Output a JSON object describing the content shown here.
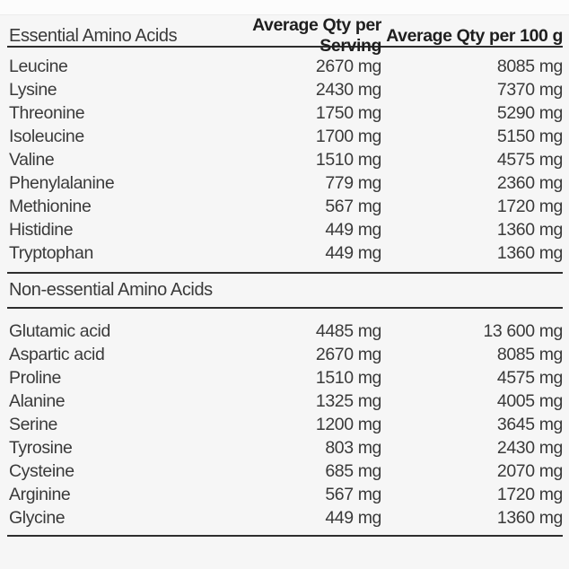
{
  "colors": {
    "background": "#f6f6f6",
    "rule": "#2e2e2e",
    "text": "#3a3a3a",
    "header_bold_text": "#1f1f1f"
  },
  "table_header": {
    "label": "Essential Amino Acids",
    "col_serving": "Average Qty per Serving",
    "col_100g": "Average Qty per 100 g"
  },
  "sections": [
    {
      "rows": [
        {
          "name": "Leucine",
          "per_serving": "2670 mg",
          "per_100g": "8085 mg"
        },
        {
          "name": "Lysine",
          "per_serving": "2430 mg",
          "per_100g": "7370 mg"
        },
        {
          "name": "Threonine",
          "per_serving": "1750 mg",
          "per_100g": "5290 mg"
        },
        {
          "name": "Isoleucine",
          "per_serving": "1700 mg",
          "per_100g": "5150 mg"
        },
        {
          "name": "Valine",
          "per_serving": "1510 mg",
          "per_100g": "4575 mg"
        },
        {
          "name": "Phenylalanine",
          "per_serving": "779 mg",
          "per_100g": "2360 mg"
        },
        {
          "name": "Methionine",
          "per_serving": "567 mg",
          "per_100g": "1720 mg"
        },
        {
          "name": "Histidine",
          "per_serving": "449 mg",
          "per_100g": "1360 mg"
        },
        {
          "name": "Tryptophan",
          "per_serving": "449 mg",
          "per_100g": "1360 mg"
        }
      ]
    },
    {
      "title": "Non-essential Amino Acids",
      "rows": [
        {
          "name": "Glutamic acid",
          "per_serving": "4485 mg",
          "per_100g": "13 600 mg"
        },
        {
          "name": "Aspartic acid",
          "per_serving": "2670 mg",
          "per_100g": "8085 mg"
        },
        {
          "name": "Proline",
          "per_serving": "1510 mg",
          "per_100g": "4575 mg"
        },
        {
          "name": "Alanine",
          "per_serving": "1325 mg",
          "per_100g": "4005 mg"
        },
        {
          "name": "Serine",
          "per_serving": "1200 mg",
          "per_100g": "3645 mg"
        },
        {
          "name": "Tyrosine",
          "per_serving": "803 mg",
          "per_100g": "2430 mg"
        },
        {
          "name": "Cysteine",
          "per_serving": "685 mg",
          "per_100g": "2070 mg"
        },
        {
          "name": "Arginine",
          "per_serving": "567 mg",
          "per_100g": "1720 mg"
        },
        {
          "name": "Glycine",
          "per_serving": "449 mg",
          "per_100g": "1360 mg"
        }
      ]
    }
  ]
}
